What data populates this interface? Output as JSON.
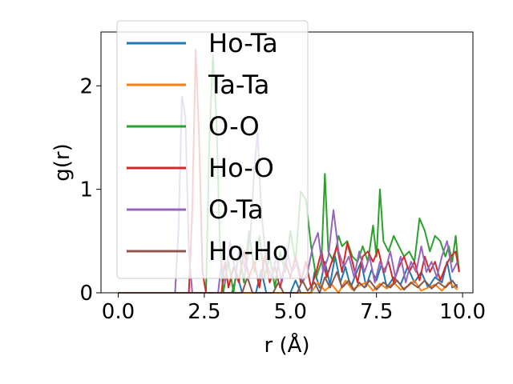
{
  "chart_data": {
    "type": "line",
    "title": "",
    "xlabel": "r (Å)",
    "ylabel": "g(r)",
    "xlim": [
      -0.5,
      10.3
    ],
    "ylim": [
      0,
      2.52
    ],
    "xticks": [
      0.0,
      2.5,
      5.0,
      7.5,
      10.0
    ],
    "xtick_labels": [
      "0.0",
      "2.5",
      "5.0",
      "7.5",
      "10.0"
    ],
    "yticks": [
      0,
      1,
      2
    ],
    "ytick_labels": [
      "0",
      "1",
      "2"
    ],
    "grid": false,
    "legend": {
      "placement": "top-left"
    },
    "series": [
      {
        "name": "Ho-Ta",
        "color": "#1f77b4",
        "points": [
          [
            0,
            0
          ],
          [
            3.3,
            0
          ],
          [
            3.45,
            0.18
          ],
          [
            3.6,
            0
          ],
          [
            4.0,
            0
          ],
          [
            4.15,
            0.22
          ],
          [
            4.3,
            0
          ],
          [
            5.0,
            0
          ],
          [
            5.15,
            0.12
          ],
          [
            5.3,
            0
          ],
          [
            5.6,
            0
          ],
          [
            5.7,
            0.2
          ],
          [
            5.85,
            0.05
          ],
          [
            6.0,
            0.3
          ],
          [
            6.15,
            0.08
          ],
          [
            6.3,
            0.35
          ],
          [
            6.45,
            0.1
          ],
          [
            6.6,
            0.25
          ],
          [
            6.75,
            0.05
          ],
          [
            6.9,
            0.18
          ],
          [
            7.05,
            0.3
          ],
          [
            7.2,
            0.06
          ],
          [
            7.35,
            0.22
          ],
          [
            7.5,
            0.12
          ],
          [
            7.65,
            0.28
          ],
          [
            7.8,
            0.05
          ],
          [
            8.0,
            0.15
          ],
          [
            8.2,
            0.08
          ],
          [
            8.4,
            0.25
          ],
          [
            8.6,
            0.1
          ],
          [
            8.8,
            0.2
          ],
          [
            9.0,
            0.05
          ],
          [
            9.2,
            0.15
          ],
          [
            9.4,
            0.1
          ],
          [
            9.55,
            0.3
          ],
          [
            9.7,
            0.05
          ],
          [
            9.85,
            0.08
          ]
        ]
      },
      {
        "name": "Ta-Ta",
        "color": "#ff7f0e",
        "points": [
          [
            0,
            0
          ],
          [
            5.6,
            0
          ],
          [
            5.8,
            0.1
          ],
          [
            6.0,
            0.02
          ],
          [
            6.2,
            0.08
          ],
          [
            6.4,
            0
          ],
          [
            6.6,
            0.12
          ],
          [
            6.8,
            0.03
          ],
          [
            7.0,
            0.07
          ],
          [
            7.2,
            0.1
          ],
          [
            7.4,
            0.02
          ],
          [
            7.6,
            0.09
          ],
          [
            7.8,
            0.04
          ],
          [
            8.0,
            0.1
          ],
          [
            8.2,
            0.03
          ],
          [
            8.4,
            0.06
          ],
          [
            8.6,
            0.12
          ],
          [
            8.8,
            0.02
          ],
          [
            9.0,
            0.05
          ],
          [
            9.2,
            0.08
          ],
          [
            9.4,
            0.02
          ],
          [
            9.6,
            0.1
          ],
          [
            9.85,
            0.03
          ]
        ]
      },
      {
        "name": "O-O",
        "color": "#2ca02c",
        "points": [
          [
            0,
            0
          ],
          [
            2.55,
            0
          ],
          [
            2.65,
            1.5
          ],
          [
            2.75,
            2.3
          ],
          [
            2.85,
            1.7
          ],
          [
            2.95,
            0.5
          ],
          [
            3.05,
            0
          ],
          [
            3.2,
            0.3
          ],
          [
            3.35,
            0
          ],
          [
            3.5,
            0.4
          ],
          [
            3.65,
            0.1
          ],
          [
            3.8,
            0.6
          ],
          [
            3.95,
            0.2
          ],
          [
            4.1,
            0.55
          ],
          [
            4.25,
            0.15
          ],
          [
            4.4,
            0.35
          ],
          [
            4.55,
            0.05
          ],
          [
            4.7,
            0.4
          ],
          [
            4.85,
            0.2
          ],
          [
            5.0,
            0.6
          ],
          [
            5.15,
            0.3
          ],
          [
            5.3,
            0.98
          ],
          [
            5.45,
            0.9
          ],
          [
            5.6,
            0.45
          ],
          [
            5.75,
            0.15
          ],
          [
            5.9,
            0.3
          ],
          [
            6.0,
            1.15
          ],
          [
            6.1,
            0.4
          ],
          [
            6.25,
            0.3
          ],
          [
            6.4,
            0.55
          ],
          [
            6.5,
            0.45
          ],
          [
            6.65,
            0.5
          ],
          [
            6.8,
            0.35
          ],
          [
            6.95,
            0.3
          ],
          [
            7.1,
            0.45
          ],
          [
            7.25,
            0.3
          ],
          [
            7.4,
            0.65
          ],
          [
            7.5,
            0.35
          ],
          [
            7.6,
            1.0
          ],
          [
            7.7,
            0.5
          ],
          [
            7.85,
            0.4
          ],
          [
            8.0,
            0.55
          ],
          [
            8.15,
            0.45
          ],
          [
            8.3,
            0.35
          ],
          [
            8.45,
            0.4
          ],
          [
            8.6,
            0.3
          ],
          [
            8.75,
            0.72
          ],
          [
            8.9,
            0.6
          ],
          [
            9.05,
            0.4
          ],
          [
            9.2,
            0.55
          ],
          [
            9.35,
            0.5
          ],
          [
            9.5,
            0.35
          ],
          [
            9.6,
            0.45
          ],
          [
            9.7,
            0.3
          ],
          [
            9.8,
            0.55
          ],
          [
            9.9,
            0.2
          ]
        ]
      },
      {
        "name": "Ho-O",
        "color": "#d62728",
        "points": [
          [
            0,
            0
          ],
          [
            2.05,
            0
          ],
          [
            2.15,
            0.8
          ],
          [
            2.25,
            2.35
          ],
          [
            2.35,
            1.5
          ],
          [
            2.45,
            0.2
          ],
          [
            2.55,
            0
          ],
          [
            3.0,
            0
          ],
          [
            3.1,
            0.3
          ],
          [
            3.2,
            0.05
          ],
          [
            3.35,
            0.25
          ],
          [
            3.5,
            0.1
          ],
          [
            3.65,
            0.4
          ],
          [
            3.8,
            0.15
          ],
          [
            3.95,
            0.3
          ],
          [
            4.1,
            0.05
          ],
          [
            4.25,
            0.35
          ],
          [
            4.4,
            0.1
          ],
          [
            4.55,
            0.25
          ],
          [
            4.7,
            0.05
          ],
          [
            4.85,
            0.3
          ],
          [
            5.0,
            0.15
          ],
          [
            5.15,
            0.35
          ],
          [
            5.3,
            0.1
          ],
          [
            5.45,
            0.3
          ],
          [
            5.6,
            0.05
          ],
          [
            5.75,
            0.2
          ],
          [
            5.9,
            0.4
          ],
          [
            6.05,
            0.15
          ],
          [
            6.2,
            0.3
          ],
          [
            6.35,
            0.45
          ],
          [
            6.5,
            0.2
          ],
          [
            6.65,
            0.48
          ],
          [
            6.8,
            0.3
          ],
          [
            6.95,
            0.1
          ],
          [
            7.1,
            0.35
          ],
          [
            7.25,
            0.4
          ],
          [
            7.4,
            0.3
          ],
          [
            7.55,
            0.42
          ],
          [
            7.7,
            0.2
          ],
          [
            7.85,
            0.3
          ],
          [
            8.0,
            0.1
          ],
          [
            8.15,
            0.25
          ],
          [
            8.3,
            0.35
          ],
          [
            8.45,
            0.2
          ],
          [
            8.6,
            0.3
          ],
          [
            8.75,
            0.12
          ],
          [
            8.9,
            0.35
          ],
          [
            9.05,
            0.2
          ],
          [
            9.2,
            0.3
          ],
          [
            9.35,
            0.12
          ],
          [
            9.5,
            0.25
          ],
          [
            9.65,
            0.35
          ],
          [
            9.8,
            0.4
          ],
          [
            9.9,
            0.2
          ]
        ]
      },
      {
        "name": "O-Ta",
        "color": "#9467bd",
        "points": [
          [
            0,
            0
          ],
          [
            1.65,
            0
          ],
          [
            1.75,
            0.6
          ],
          [
            1.85,
            1.9
          ],
          [
            1.95,
            1.7
          ],
          [
            2.05,
            0.4
          ],
          [
            2.15,
            0
          ],
          [
            2.9,
            0
          ],
          [
            3.0,
            0.3
          ],
          [
            3.1,
            0.1
          ],
          [
            3.25,
            0.5
          ],
          [
            3.4,
            0.2
          ],
          [
            3.55,
            0.45
          ],
          [
            3.7,
            0.2
          ],
          [
            3.85,
            0.6
          ],
          [
            3.95,
            1.2
          ],
          [
            4.05,
            1.55
          ],
          [
            4.15,
            0.8
          ],
          [
            4.3,
            0.3
          ],
          [
            4.45,
            0.15
          ],
          [
            4.6,
            0.35
          ],
          [
            4.75,
            0.1
          ],
          [
            4.9,
            0.4
          ],
          [
            5.05,
            0.2
          ],
          [
            5.2,
            0.3
          ],
          [
            5.35,
            0.1
          ],
          [
            5.5,
            0.2
          ],
          [
            5.65,
            0.45
          ],
          [
            5.8,
            0.58
          ],
          [
            5.95,
            0.2
          ],
          [
            6.1,
            0.35
          ],
          [
            6.25,
            0.8
          ],
          [
            6.4,
            0.4
          ],
          [
            6.55,
            0.25
          ],
          [
            6.7,
            0.35
          ],
          [
            6.85,
            0.15
          ],
          [
            7.0,
            0.4
          ],
          [
            7.15,
            0.2
          ],
          [
            7.3,
            0.35
          ],
          [
            7.45,
            0.1
          ],
          [
            7.6,
            0.3
          ],
          [
            7.75,
            0.2
          ],
          [
            7.9,
            0.4
          ],
          [
            8.05,
            0.15
          ],
          [
            8.2,
            0.35
          ],
          [
            8.35,
            0.1
          ],
          [
            8.5,
            0.3
          ],
          [
            8.65,
            0.2
          ],
          [
            8.8,
            0.45
          ],
          [
            8.95,
            0.2
          ],
          [
            9.1,
            0.3
          ],
          [
            9.25,
            0.15
          ],
          [
            9.4,
            0.35
          ],
          [
            9.55,
            0.5
          ],
          [
            9.7,
            0.2
          ],
          [
            9.85,
            0.3
          ]
        ]
      },
      {
        "name": "Ho-Ho",
        "color": "#8c564b",
        "points": [
          [
            0,
            0
          ],
          [
            3.6,
            0
          ],
          [
            3.75,
            0.15
          ],
          [
            3.9,
            0
          ],
          [
            4.5,
            0
          ],
          [
            4.65,
            0.1
          ],
          [
            4.8,
            0
          ],
          [
            5.2,
            0
          ],
          [
            5.35,
            0.12
          ],
          [
            5.5,
            0.02
          ],
          [
            5.7,
            0.1
          ],
          [
            5.85,
            0
          ],
          [
            6.0,
            0.15
          ],
          [
            6.15,
            0.05
          ],
          [
            6.35,
            0.2
          ],
          [
            6.5,
            0.05
          ],
          [
            6.7,
            0.12
          ],
          [
            6.85,
            0.02
          ],
          [
            7.0,
            0.1
          ],
          [
            7.15,
            0.05
          ],
          [
            7.3,
            0.12
          ],
          [
            7.5,
            0.03
          ],
          [
            7.7,
            0.1
          ],
          [
            7.9,
            0.05
          ],
          [
            8.1,
            0.12
          ],
          [
            8.3,
            0.03
          ],
          [
            8.5,
            0.1
          ],
          [
            8.7,
            0.05
          ],
          [
            8.9,
            0.12
          ],
          [
            9.1,
            0.04
          ],
          [
            9.3,
            0.1
          ],
          [
            9.5,
            0.05
          ],
          [
            9.7,
            0.12
          ],
          [
            9.85,
            0.05
          ]
        ]
      }
    ]
  }
}
